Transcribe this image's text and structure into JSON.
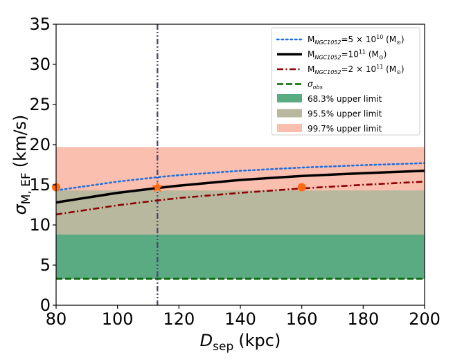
{
  "chart_data": {
    "type": "line",
    "xlabel": "D",
    "xlabel_sub": "sep",
    "xlabel_unit": "(kpc)",
    "ylabel": "σ",
    "ylabel_sub": "M, EF",
    "ylabel_unit": "(km/s)",
    "xlim": [
      80,
      200
    ],
    "ylim": [
      0,
      35
    ],
    "xticks": [
      80,
      100,
      120,
      140,
      160,
      180,
      200
    ],
    "yticks": [
      0,
      5,
      10,
      15,
      20,
      25,
      30,
      35
    ],
    "bands": [
      {
        "name": "99.7% upper limit",
        "y0": 3.3,
        "y1": 19.7,
        "color": "#fbbfb0"
      },
      {
        "name": "95.5% upper limit",
        "y0": 3.3,
        "y1": 14.3,
        "color": "#b8b89f"
      },
      {
        "name": "68.3% upper limit",
        "y0": 3.3,
        "y1": 8.8,
        "color": "#5aaa82"
      }
    ],
    "series": [
      {
        "name": "5e10",
        "style": "dotted",
        "color": "#1f6fe0",
        "x": [
          80,
          100,
          113,
          120,
          140,
          160,
          180,
          200
        ],
        "y": [
          14.3,
          15.4,
          15.95,
          16.2,
          16.75,
          17.15,
          17.45,
          17.7
        ]
      },
      {
        "name": "1e11",
        "style": "solid",
        "color": "#000000",
        "x": [
          80,
          100,
          113,
          120,
          140,
          160,
          180,
          200
        ],
        "y": [
          12.8,
          14.0,
          14.6,
          14.9,
          15.6,
          16.1,
          16.45,
          16.75
        ]
      },
      {
        "name": "2e11",
        "style": "dashdot",
        "color": "#8b0000",
        "x": [
          80,
          100,
          113,
          120,
          140,
          160,
          180,
          200
        ],
        "y": [
          11.3,
          12.45,
          13.05,
          13.35,
          14.0,
          14.55,
          15.0,
          15.4
        ]
      }
    ],
    "sigma_obs": 3.3,
    "vline_x": 113,
    "markers": [
      {
        "x": 80,
        "y": 14.7,
        "shape": "circle",
        "color": "#ff6a13"
      },
      {
        "x": 160,
        "y": 14.7,
        "shape": "circle",
        "color": "#ff6a13"
      },
      {
        "x": 113,
        "y": 14.7,
        "shape": "star",
        "color": "#ff6a13"
      }
    ],
    "legend": {
      "placement": "top-right",
      "entries": [
        {
          "label_pre": "M",
          "label_sub": "NGC1052",
          "label_post": "=5 × 10",
          "label_sup": "10",
          "label_unit": " (M",
          "style": "dotted",
          "color": "#1f6fe0"
        },
        {
          "label_pre": "M",
          "label_sub": "NGC1052",
          "label_post": "=10",
          "label_sup": "11",
          "label_unit": " (M",
          "style": "solid",
          "color": "#000000"
        },
        {
          "label_pre": "M",
          "label_sub": "NGC1052",
          "label_post": "=2 × 10",
          "label_sup": "11",
          "label_unit": " (M",
          "style": "dashdot",
          "color": "#8b0000"
        },
        {
          "label_pre": "σ",
          "label_sub": "obs",
          "style": "dashed",
          "color": "#006400"
        },
        {
          "label_pre": "68.3% upper limit",
          "style": "patch",
          "color": "#5aaa82"
        },
        {
          "label_pre": "95.5% upper limit",
          "style": "patch",
          "color": "#b8b89f"
        },
        {
          "label_pre": "99.7% upper limit",
          "style": "patch",
          "color": "#fbbfb0"
        }
      ]
    }
  }
}
